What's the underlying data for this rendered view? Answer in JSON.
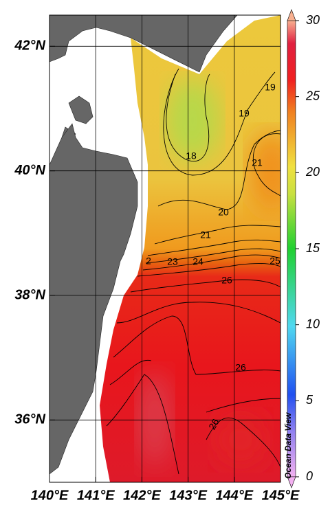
{
  "map": {
    "xlim": [
      140,
      145
    ],
    "ylim": [
      35,
      42.5
    ],
    "xticks": [
      {
        "value": 140,
        "label": "140°E"
      },
      {
        "value": 141,
        "label": "141°E"
      },
      {
        "value": 142,
        "label": "142°E"
      },
      {
        "value": 143,
        "label": "143°E"
      },
      {
        "value": 144,
        "label": "144°E"
      },
      {
        "value": 145,
        "label": "145°E"
      }
    ],
    "yticks": [
      {
        "value": 36,
        "label": "36°N"
      },
      {
        "value": 38,
        "label": "38°N"
      },
      {
        "value": 40,
        "label": "40°N"
      },
      {
        "value": 42,
        "label": "42°N"
      }
    ],
    "grid": true,
    "contour_labels": [
      "19",
      "19",
      "18",
      "21",
      "20",
      "21",
      "2",
      "23",
      "24",
      "25",
      "26",
      "26",
      "26"
    ],
    "colorbar": {
      "lim": [
        0,
        30
      ],
      "ticks": [
        0,
        5,
        10,
        15,
        20,
        25,
        30
      ]
    },
    "watermark": "Ocean Data View"
  }
}
